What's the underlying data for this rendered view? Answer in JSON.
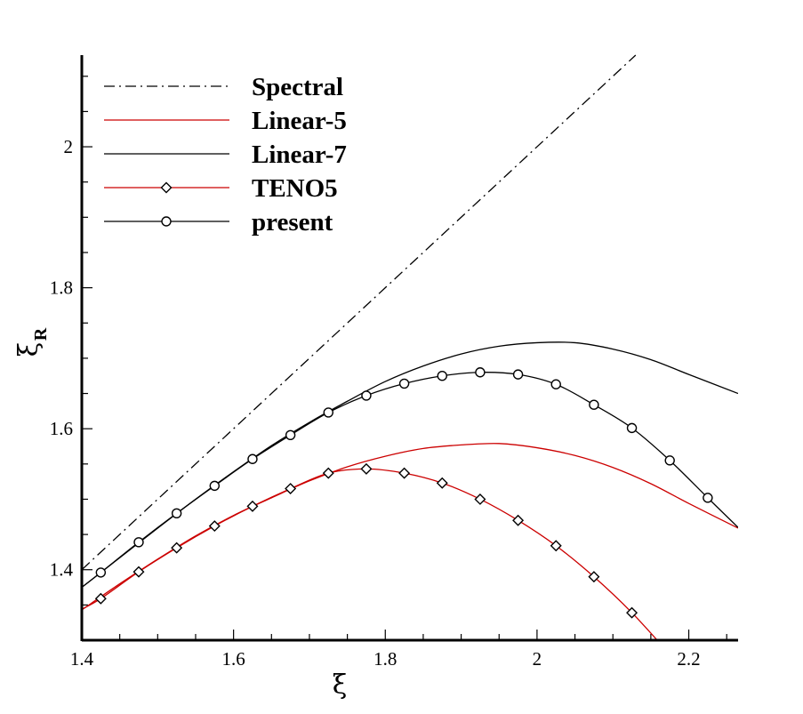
{
  "chart_data": {
    "type": "line",
    "xlabel": "ξ",
    "ylabel": "ξ",
    "ylabel_subscript": "R",
    "xlim": [
      1.4,
      2.265
    ],
    "ylim": [
      1.3,
      2.13
    ],
    "x_ticks": [
      1.4,
      1.6,
      1.8,
      2.0,
      2.2
    ],
    "x_tick_labels": [
      "1.4",
      "1.6",
      "1.8",
      "2",
      "2.2"
    ],
    "y_ticks": [
      1.4,
      1.6,
      1.8,
      2.0
    ],
    "y_tick_labels": [
      "1.4",
      "1.6",
      "1.8",
      "2"
    ],
    "legend_position": "top-left",
    "series": [
      {
        "name": "Spectral",
        "color": "#000000",
        "dash": "dashdot",
        "marker": "none",
        "x": [
          1.4,
          2.13
        ],
        "y": [
          1.4,
          2.13
        ]
      },
      {
        "name": "Linear-5",
        "color": "#cc0000",
        "dash": "solid",
        "marker": "none",
        "x": [
          1.4,
          1.45,
          1.5,
          1.55,
          1.6,
          1.65,
          1.7,
          1.75,
          1.8,
          1.85,
          1.9,
          1.95,
          2.0,
          2.05,
          2.1,
          2.15,
          2.2,
          2.265
        ],
        "y": [
          1.343,
          1.38,
          1.415,
          1.448,
          1.477,
          1.502,
          1.526,
          1.546,
          1.561,
          1.572,
          1.577,
          1.579,
          1.573,
          1.562,
          1.545,
          1.522,
          1.494,
          1.459
        ]
      },
      {
        "name": "Linear-7",
        "color": "#000000",
        "dash": "solid",
        "marker": "none",
        "x": [
          1.4,
          1.45,
          1.5,
          1.55,
          1.6,
          1.65,
          1.7,
          1.75,
          1.8,
          1.85,
          1.9,
          1.95,
          2.0,
          2.05,
          2.1,
          2.15,
          2.2,
          2.265
        ],
        "y": [
          1.375,
          1.417,
          1.459,
          1.5,
          1.539,
          1.576,
          1.609,
          1.639,
          1.667,
          1.689,
          1.706,
          1.717,
          1.722,
          1.722,
          1.713,
          1.698,
          1.677,
          1.65
        ]
      },
      {
        "name": "TENO5",
        "color": "#cc0000",
        "dash": "solid",
        "marker": "diamond",
        "x": [
          1.4,
          1.425,
          1.475,
          1.525,
          1.575,
          1.625,
          1.675,
          1.725,
          1.775,
          1.825,
          1.875,
          1.925,
          1.975,
          2.025,
          2.075,
          2.125,
          2.175
        ],
        "y": [
          1.344,
          1.359,
          1.397,
          1.431,
          1.462,
          1.49,
          1.515,
          1.537,
          1.543,
          1.537,
          1.523,
          1.5,
          1.47,
          1.434,
          1.39,
          1.339,
          1.28
        ]
      },
      {
        "name": "present",
        "color": "#000000",
        "dash": "solid",
        "marker": "circle",
        "x": [
          1.4,
          1.425,
          1.475,
          1.525,
          1.575,
          1.625,
          1.675,
          1.725,
          1.775,
          1.825,
          1.875,
          1.925,
          1.975,
          2.025,
          2.075,
          2.125,
          2.175,
          2.225,
          2.265
        ],
        "y": [
          1.375,
          1.396,
          1.439,
          1.48,
          1.519,
          1.557,
          1.591,
          1.623,
          1.647,
          1.664,
          1.675,
          1.68,
          1.677,
          1.663,
          1.634,
          1.601,
          1.555,
          1.502,
          1.46
        ]
      }
    ]
  }
}
